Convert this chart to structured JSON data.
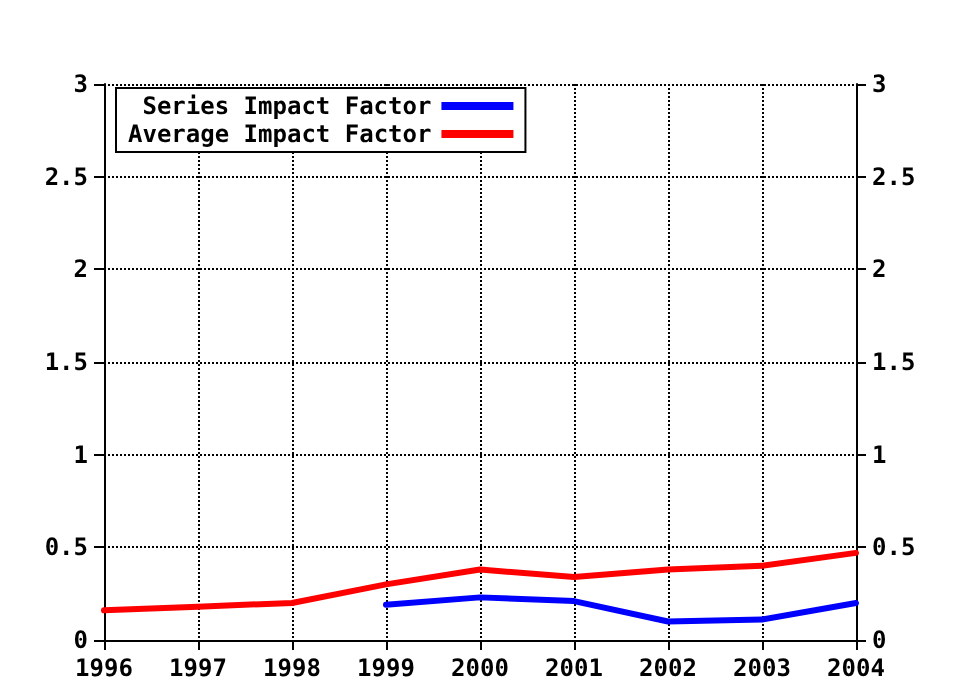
{
  "chart_data": {
    "type": "line",
    "x": [
      1996,
      1997,
      1998,
      1999,
      2000,
      2001,
      2002,
      2003,
      2004
    ],
    "series": [
      {
        "name": "Series Impact Factor",
        "color": "#0000ff",
        "values": [
          null,
          null,
          null,
          0.19,
          0.23,
          0.21,
          0.1,
          0.11,
          0.2
        ]
      },
      {
        "name": "Average Impact Factor",
        "color": "#ff0000",
        "values": [
          0.16,
          0.18,
          0.2,
          0.3,
          0.38,
          0.34,
          0.38,
          0.4,
          0.47
        ]
      }
    ],
    "xlim": [
      1996,
      2004
    ],
    "xticks": [
      1996,
      1997,
      1998,
      1999,
      2000,
      2001,
      2002,
      2003,
      2004
    ],
    "ylim": [
      0,
      3
    ],
    "yticks": [
      0,
      0.5,
      1,
      1.5,
      2,
      2.5,
      3
    ],
    "y2lim": [
      0,
      3
    ],
    "y2ticks": [
      0,
      0.5,
      1,
      1.5,
      2,
      2.5,
      3
    ],
    "grid": true,
    "legend": "top left",
    "marker": "none",
    "line_style": "solid"
  }
}
